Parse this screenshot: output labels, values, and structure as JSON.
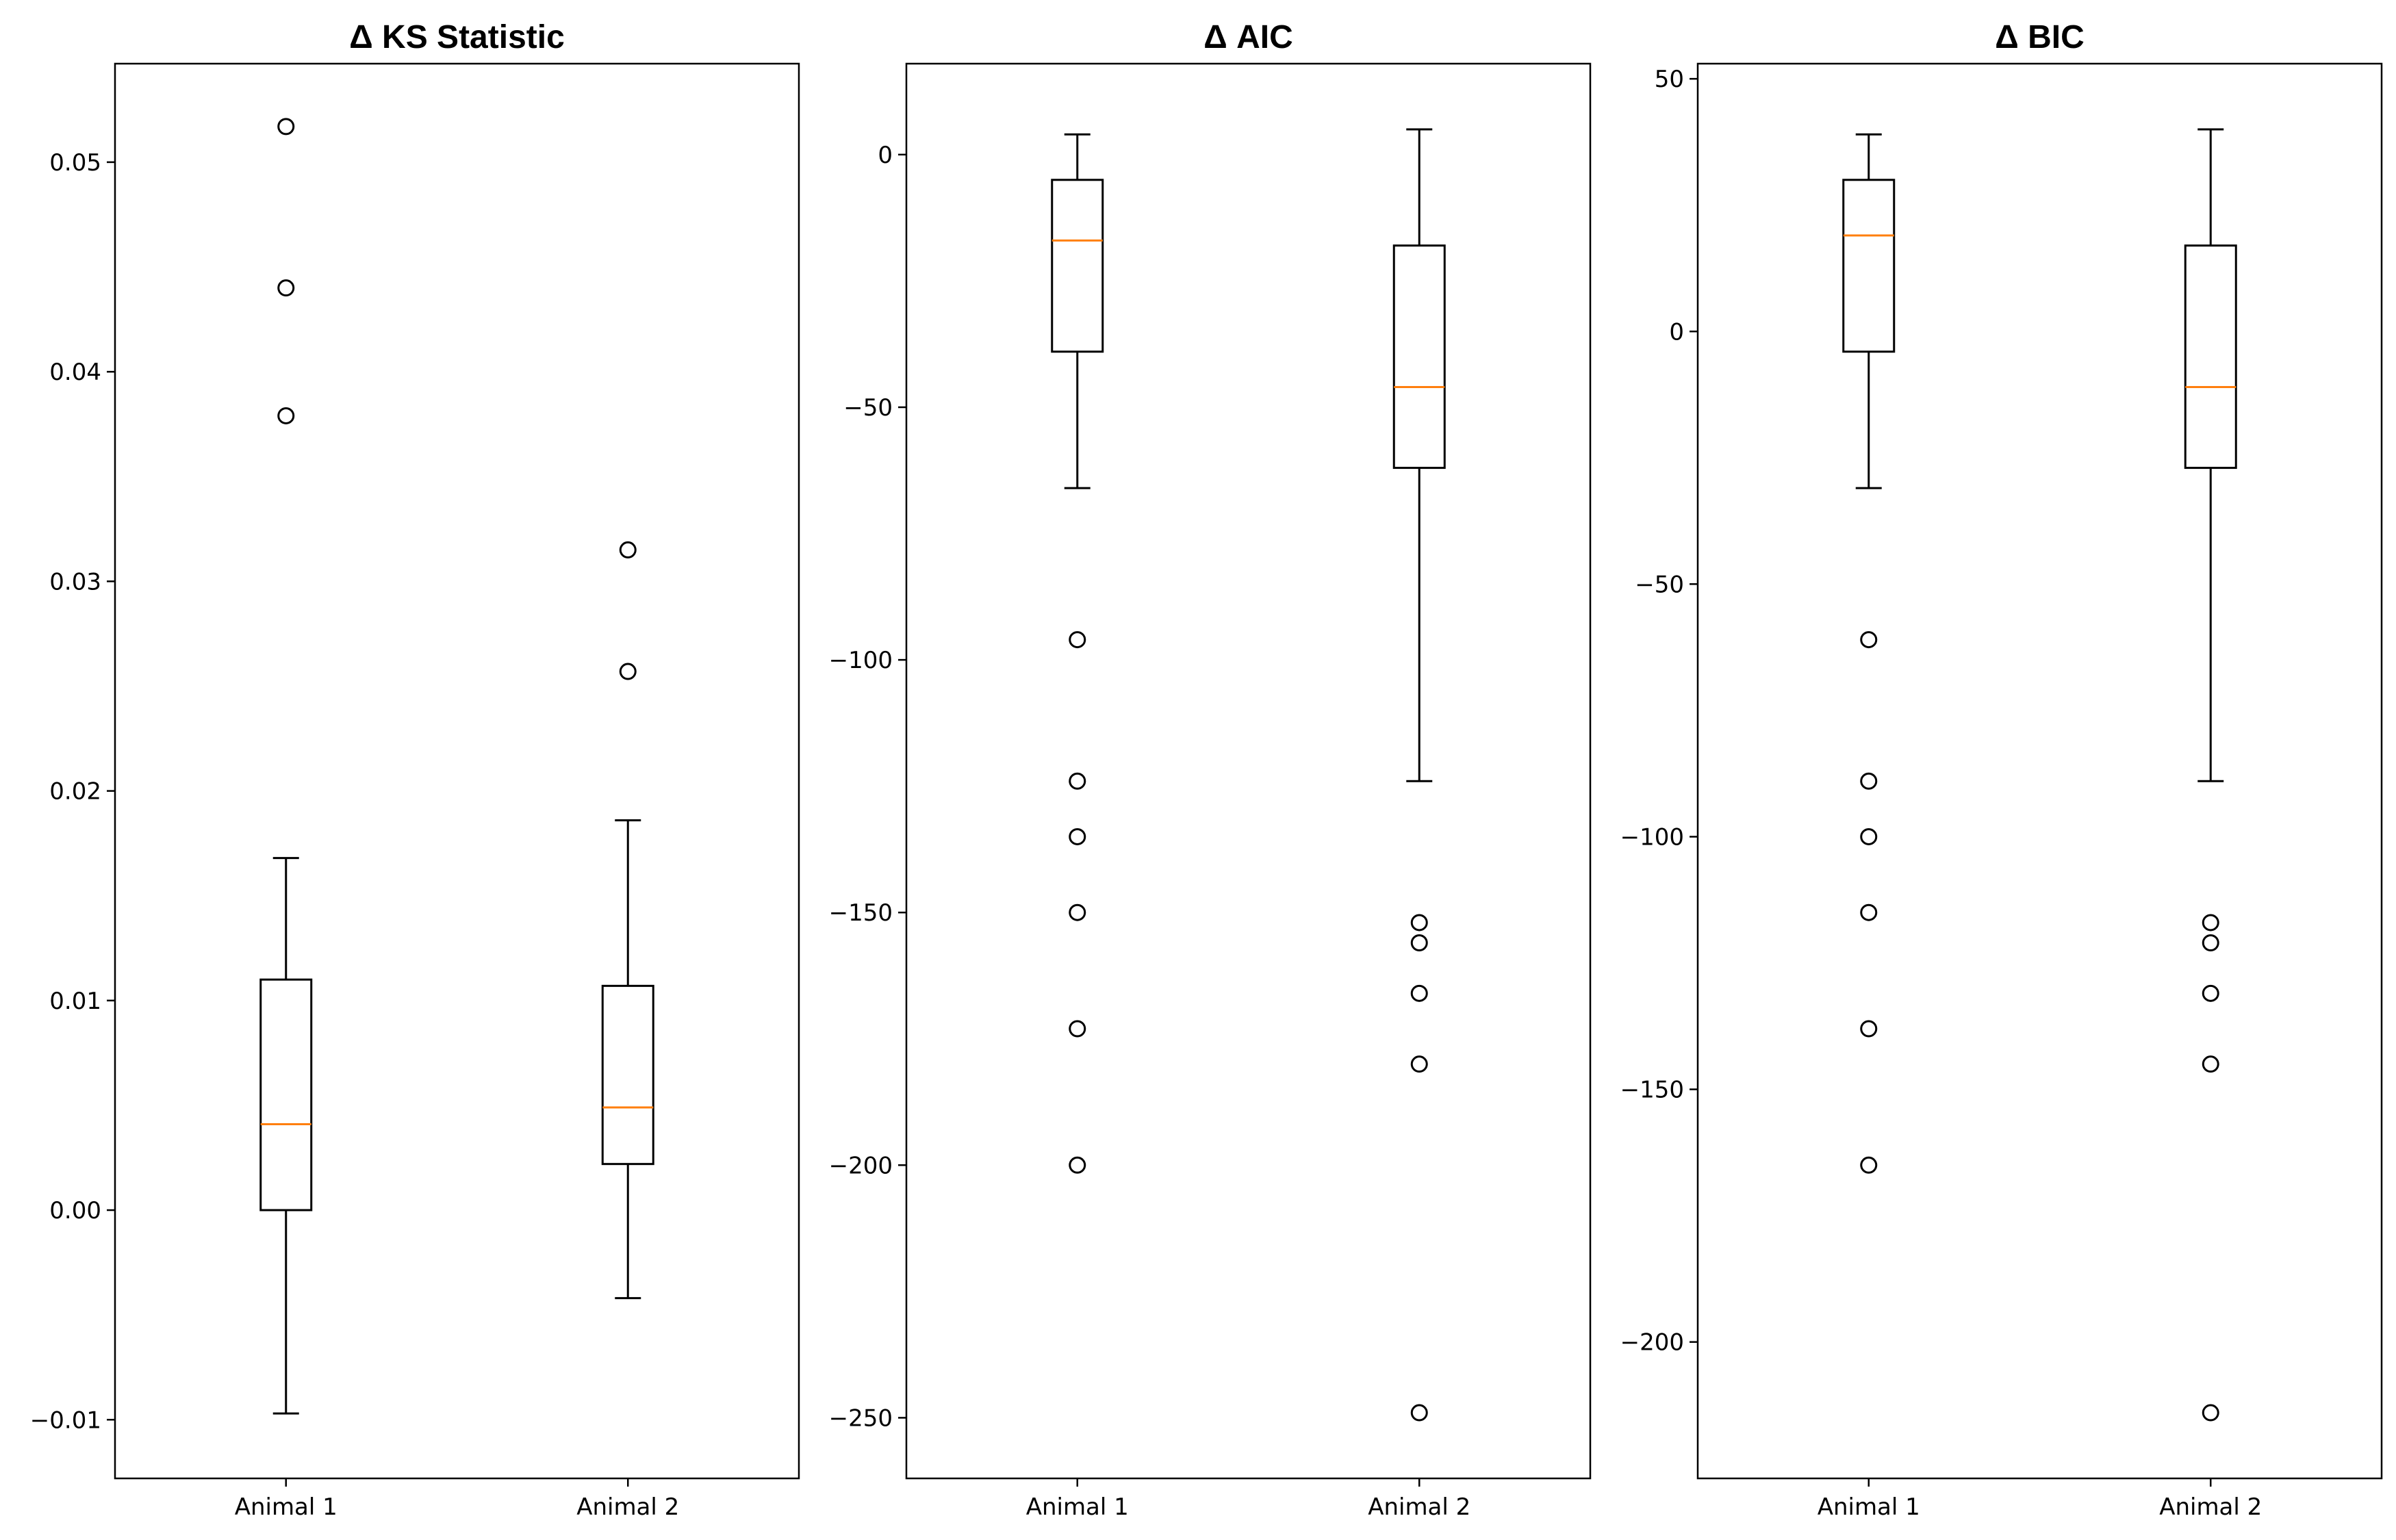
{
  "chart_data": [
    {
      "type": "box",
      "title": "Δ KS Statistic",
      "categories": [
        "Animal 1",
        "Animal 2"
      ],
      "ylim": [
        -0.0128,
        0.0547
      ],
      "yticks": [
        -0.01,
        0.0,
        0.01,
        0.02,
        0.03,
        0.04,
        0.05
      ],
      "ytick_labels": [
        "−0.01",
        "0.00",
        "0.01",
        "0.02",
        "0.03",
        "0.04",
        "0.05"
      ],
      "boxes": [
        {
          "name": "Animal 1",
          "whisker_low": -0.0097,
          "q1": 0.0,
          "median": 0.0041,
          "q3": 0.011,
          "whisker_high": 0.0168,
          "fliers": [
            0.0517,
            0.044,
            0.0379
          ]
        },
        {
          "name": "Animal 2",
          "whisker_low": -0.0042,
          "q1": 0.0022,
          "median": 0.0049,
          "q3": 0.0107,
          "whisker_high": 0.0186,
          "fliers": [
            0.0315,
            0.0257
          ]
        }
      ]
    },
    {
      "type": "box",
      "title": "Δ AIC",
      "categories": [
        "Animal 1",
        "Animal 2"
      ],
      "ylim": [
        -262,
        18
      ],
      "yticks": [
        0,
        -50,
        -100,
        -150,
        -200,
        -250
      ],
      "ytick_labels": [
        "0",
        "−50",
        "−100",
        "−150",
        "−200",
        "−250"
      ],
      "boxes": [
        {
          "name": "Animal 1",
          "whisker_low": -66,
          "q1": -39,
          "median": -17,
          "q3": -5,
          "whisker_high": 4,
          "fliers": [
            -96,
            -124,
            -135,
            -150,
            -173,
            -200
          ]
        },
        {
          "name": "Animal 2",
          "whisker_low": -124,
          "q1": -62,
          "median": -46,
          "q3": -18,
          "whisker_high": 5,
          "fliers": [
            -152,
            -156,
            -166,
            -180,
            -249
          ]
        }
      ]
    },
    {
      "type": "box",
      "title": "Δ BIC",
      "categories": [
        "Animal 1",
        "Animal 2"
      ],
      "ylim": [
        -227,
        53
      ],
      "yticks": [
        50,
        0,
        -50,
        -100,
        -150,
        -200
      ],
      "ytick_labels": [
        "50",
        "0",
        "−50",
        "−100",
        "−150",
        "−200"
      ],
      "boxes": [
        {
          "name": "Animal 1",
          "whisker_low": -31,
          "q1": -4,
          "median": 19,
          "q3": 30,
          "whisker_high": 39,
          "fliers": [
            -61,
            -89,
            -100,
            -115,
            -138,
            -165
          ]
        },
        {
          "name": "Animal 2",
          "whisker_low": -89,
          "q1": -27,
          "median": -11,
          "q3": 17,
          "whisker_high": 40,
          "fliers": [
            -117,
            -121,
            -131,
            -145,
            -214
          ]
        }
      ]
    }
  ]
}
